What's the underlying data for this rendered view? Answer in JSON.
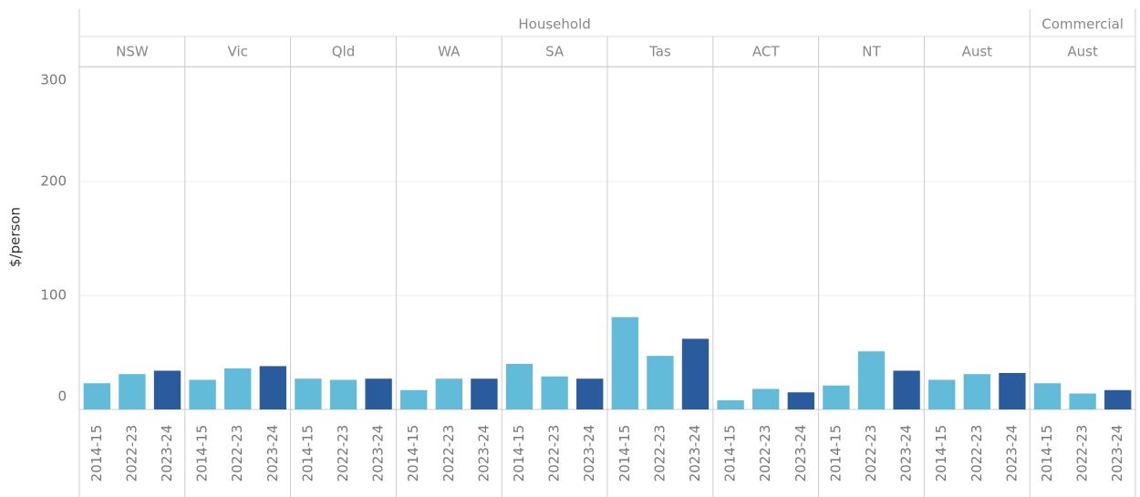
{
  "chart_data": {
    "type": "bar",
    "y_label": "$/person",
    "ylim": [
      0,
      300
    ],
    "yticks": [
      0,
      100,
      200,
      300
    ],
    "grid": true,
    "categories": [
      "2014-15",
      "2022-23",
      "2023-24"
    ],
    "colors": [
      "#62bbd9",
      "#62bbd9",
      "#2a5b9c"
    ],
    "groups": [
      {
        "name": "Household",
        "panels": [
          {
            "name": "NSW",
            "values": [
              23,
              31,
              34
            ]
          },
          {
            "name": "Vic",
            "values": [
              26,
              36,
              38
            ]
          },
          {
            "name": "Qld",
            "values": [
              27,
              26,
              27
            ]
          },
          {
            "name": "WA",
            "values": [
              17,
              27,
              27
            ]
          },
          {
            "name": "SA",
            "values": [
              40,
              29,
              27
            ]
          },
          {
            "name": "Tas",
            "values": [
              81,
              47,
              62
            ]
          },
          {
            "name": "ACT",
            "values": [
              8,
              18,
              15
            ]
          },
          {
            "name": "NT",
            "values": [
              21,
              51,
              34
            ]
          },
          {
            "name": "Aust",
            "values": [
              26,
              31,
              32
            ]
          }
        ]
      },
      {
        "name": "Commercial",
        "panels": [
          {
            "name": "Aust",
            "values": [
              23,
              14,
              17
            ]
          }
        ]
      }
    ]
  }
}
